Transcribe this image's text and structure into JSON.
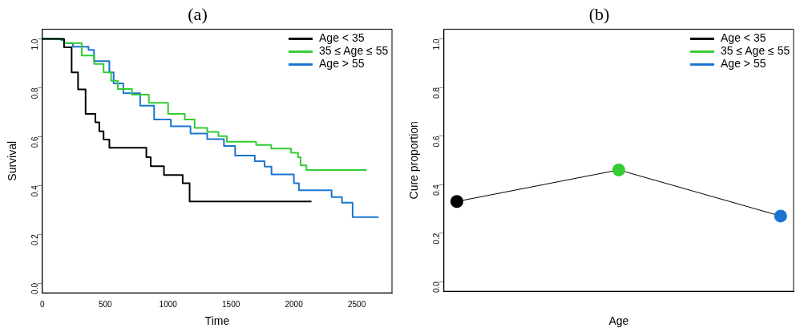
{
  "chart_data": [
    {
      "type": "step",
      "title": "(a)",
      "xlabel": "Time",
      "ylabel": "Survival",
      "xlim": [
        0,
        2780
      ],
      "ylim": [
        -0.04,
        1.04
      ],
      "xticks": [
        0,
        500,
        1000,
        1500,
        2000,
        2500
      ],
      "yticks": [
        {
          "value": 0,
          "label": "0.0"
        },
        {
          "value": 0.2,
          "label": "0.2"
        },
        {
          "value": 0.4,
          "label": "0.4"
        },
        {
          "value": 0.6,
          "label": "0.6"
        },
        {
          "value": 0.8,
          "label": "0.8"
        },
        {
          "value": 1,
          "label": "1.0"
        }
      ],
      "grid": false,
      "legend": "top right",
      "line_style": "solid",
      "series": [
        {
          "name": "Age < 35",
          "color": "#000000",
          "x": [
            0,
            173,
            233,
            284,
            344,
            422,
            453,
            487,
            533,
            827,
            862,
            967,
            1116,
            1171,
            2140
          ],
          "values": [
            1,
            0.966,
            0.863,
            0.793,
            0.693,
            0.659,
            0.622,
            0.588,
            0.554,
            0.516,
            0.479,
            0.443,
            0.409,
            0.334,
            0.334
          ]
        },
        {
          "name": "35 ≤ Age ≤ 55",
          "color": "#33cc33",
          "x": [
            0,
            153,
            173,
            313,
            413,
            487,
            547,
            600,
            713,
            847,
            1000,
            1133,
            1211,
            1311,
            1400,
            1467,
            1700,
            1820,
            1978,
            2033,
            2053,
            2100,
            2578
          ],
          "values": [
            1,
            0.995,
            0.983,
            0.932,
            0.898,
            0.863,
            0.829,
            0.795,
            0.772,
            0.738,
            0.693,
            0.67,
            0.636,
            0.619,
            0.602,
            0.579,
            0.566,
            0.551,
            0.534,
            0.516,
            0.482,
            0.463,
            0.463
          ]
        },
        {
          "name": "Age > 55",
          "color": "#1a75d1",
          "x": [
            0,
            150,
            173,
            244,
            367,
            411,
            533,
            567,
            644,
            778,
            889,
            1022,
            1178,
            1311,
            1444,
            1533,
            1689,
            1767,
            1822,
            2000,
            2040,
            2300,
            2382,
            2467,
            2673
          ],
          "values": [
            1,
            0.995,
            0.983,
            0.968,
            0.955,
            0.909,
            0.863,
            0.818,
            0.778,
            0.727,
            0.67,
            0.642,
            0.613,
            0.59,
            0.562,
            0.522,
            0.499,
            0.477,
            0.445,
            0.409,
            0.38,
            0.352,
            0.329,
            0.27,
            0.27
          ]
        }
      ]
    },
    {
      "type": "line",
      "title": "(b)",
      "xlabel": "Age",
      "ylabel": "Cure proportion",
      "categories": [
        null,
        null,
        null
      ],
      "ylim": [
        -0.04,
        1.04
      ],
      "yticks": [
        {
          "value": 0,
          "label": "0.0"
        },
        {
          "value": 0.2,
          "label": "0.2"
        },
        {
          "value": 0.4,
          "label": "0.4"
        },
        {
          "value": 0.6,
          "label": "0.6"
        },
        {
          "value": 0.8,
          "label": "0.8"
        },
        {
          "value": 1,
          "label": "1.0"
        }
      ],
      "grid": false,
      "legend": "top right",
      "tick_labels": "y",
      "marker": "circle",
      "series": [
        {
          "marker": "none",
          "color": "#000000",
          "values": [
            0.33,
            0.46,
            0.27
          ]
        },
        {
          "type": "scatter",
          "name": "Age < 35",
          "color": "#000000",
          "values": [
            0.33,
            null,
            null
          ]
        },
        {
          "type": "scatter",
          "name": "35 ≤ Age ≤ 55",
          "color": "#33cc33",
          "values": [
            null,
            0.46,
            null
          ]
        },
        {
          "type": "scatter",
          "name": "Age > 55",
          "color": "#1a75d1",
          "values": [
            null,
            null,
            0.27
          ]
        }
      ]
    }
  ]
}
